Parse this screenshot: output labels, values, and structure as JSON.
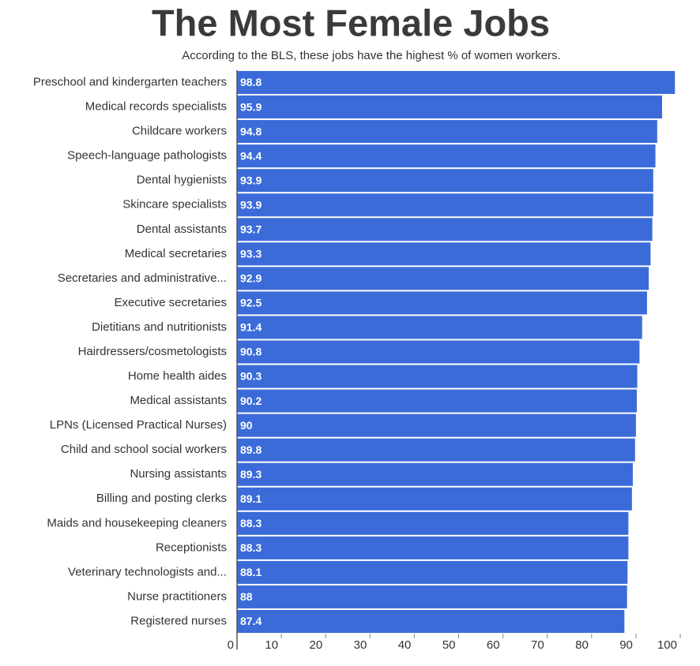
{
  "chart_data": {
    "type": "bar",
    "orientation": "horizontal",
    "title": "The Most Female Jobs",
    "subtitle": "According to the BLS, these jobs have the highest % of women workers.",
    "categories": [
      "Preschool and kindergarten teachers",
      "Medical records specialists",
      "Childcare workers",
      "Speech-language pathologists",
      "Dental hygienists",
      "Skincare specialists",
      "Dental assistants",
      "Medical secretaries",
      "Secretaries and administrative...",
      "Executive secretaries",
      "Dietitians and nutritionists",
      "Hairdressers/cosmetologists",
      "Home health aides",
      "Medical assistants",
      "LPNs (Licensed Practical Nurses)",
      "Child and school social workers",
      "Nursing assistants",
      "Billing and posting clerks",
      "Maids and housekeeping cleaners",
      "Receptionists",
      "Veterinary technologists and...",
      "Nurse practitioners",
      "Registered nurses"
    ],
    "values": [
      98.8,
      95.9,
      94.8,
      94.4,
      93.9,
      93.9,
      93.7,
      93.3,
      92.9,
      92.5,
      91.4,
      90.8,
      90.3,
      90.2,
      90,
      89.8,
      89.3,
      89.1,
      88.3,
      88.3,
      88.1,
      88,
      87.4
    ],
    "color": "#3b6bd9",
    "xlim": [
      0,
      100
    ],
    "xticks": [
      0,
      10,
      20,
      30,
      40,
      50,
      60,
      70,
      80,
      90,
      100
    ]
  }
}
